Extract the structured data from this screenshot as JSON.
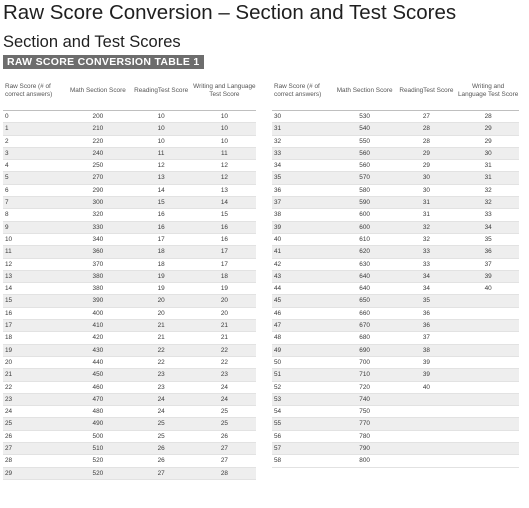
{
  "title": "Raw Score Conversion – Section and Test Scores",
  "subtitle": "Section and Test Scores",
  "banner": "RAW SCORE CONVERSION TABLE 1",
  "headers": [
    "Raw Score (# of correct answers)",
    "Math Section Score",
    "ReadingTest Score",
    "Writing and Language Test Score"
  ],
  "left_rows": [
    [
      "0",
      "200",
      "10",
      "10"
    ],
    [
      "1",
      "210",
      "10",
      "10"
    ],
    [
      "2",
      "220",
      "10",
      "10"
    ],
    [
      "3",
      "240",
      "11",
      "11"
    ],
    [
      "4",
      "250",
      "12",
      "12"
    ],
    [
      "5",
      "270",
      "13",
      "12"
    ],
    [
      "6",
      "290",
      "14",
      "13"
    ],
    [
      "7",
      "300",
      "15",
      "14"
    ],
    [
      "8",
      "320",
      "16",
      "15"
    ],
    [
      "9",
      "330",
      "16",
      "16"
    ],
    [
      "10",
      "340",
      "17",
      "16"
    ],
    [
      "11",
      "360",
      "18",
      "17"
    ],
    [
      "12",
      "370",
      "18",
      "17"
    ],
    [
      "13",
      "380",
      "19",
      "18"
    ],
    [
      "14",
      "380",
      "19",
      "19"
    ],
    [
      "15",
      "390",
      "20",
      "20"
    ],
    [
      "16",
      "400",
      "20",
      "20"
    ],
    [
      "17",
      "410",
      "21",
      "21"
    ],
    [
      "18",
      "420",
      "21",
      "21"
    ],
    [
      "19",
      "430",
      "22",
      "22"
    ],
    [
      "20",
      "440",
      "22",
      "22"
    ],
    [
      "21",
      "450",
      "23",
      "23"
    ],
    [
      "22",
      "460",
      "23",
      "24"
    ],
    [
      "23",
      "470",
      "24",
      "24"
    ],
    [
      "24",
      "480",
      "24",
      "25"
    ],
    [
      "25",
      "490",
      "25",
      "25"
    ],
    [
      "26",
      "500",
      "25",
      "26"
    ],
    [
      "27",
      "510",
      "26",
      "27"
    ],
    [
      "28",
      "520",
      "26",
      "27"
    ],
    [
      "29",
      "520",
      "27",
      "28"
    ]
  ],
  "right_rows": [
    [
      "30",
      "530",
      "27",
      "28"
    ],
    [
      "31",
      "540",
      "28",
      "29"
    ],
    [
      "32",
      "550",
      "28",
      "29"
    ],
    [
      "33",
      "560",
      "29",
      "30"
    ],
    [
      "34",
      "560",
      "29",
      "31"
    ],
    [
      "35",
      "570",
      "30",
      "31"
    ],
    [
      "36",
      "580",
      "30",
      "32"
    ],
    [
      "37",
      "590",
      "31",
      "32"
    ],
    [
      "38",
      "600",
      "31",
      "33"
    ],
    [
      "39",
      "600",
      "32",
      "34"
    ],
    [
      "40",
      "610",
      "32",
      "35"
    ],
    [
      "41",
      "620",
      "33",
      "36"
    ],
    [
      "42",
      "630",
      "33",
      "37"
    ],
    [
      "43",
      "640",
      "34",
      "39"
    ],
    [
      "44",
      "640",
      "34",
      "40"
    ],
    [
      "45",
      "650",
      "35",
      ""
    ],
    [
      "46",
      "660",
      "36",
      ""
    ],
    [
      "47",
      "670",
      "36",
      ""
    ],
    [
      "48",
      "680",
      "37",
      ""
    ],
    [
      "49",
      "690",
      "38",
      ""
    ],
    [
      "50",
      "700",
      "39",
      ""
    ],
    [
      "51",
      "710",
      "39",
      ""
    ],
    [
      "52",
      "720",
      "40",
      ""
    ],
    [
      "53",
      "740",
      "",
      ""
    ],
    [
      "54",
      "750",
      "",
      ""
    ],
    [
      "55",
      "770",
      "",
      ""
    ],
    [
      "56",
      "780",
      "",
      ""
    ],
    [
      "57",
      "790",
      "",
      ""
    ],
    [
      "58",
      "800",
      "",
      ""
    ]
  ]
}
